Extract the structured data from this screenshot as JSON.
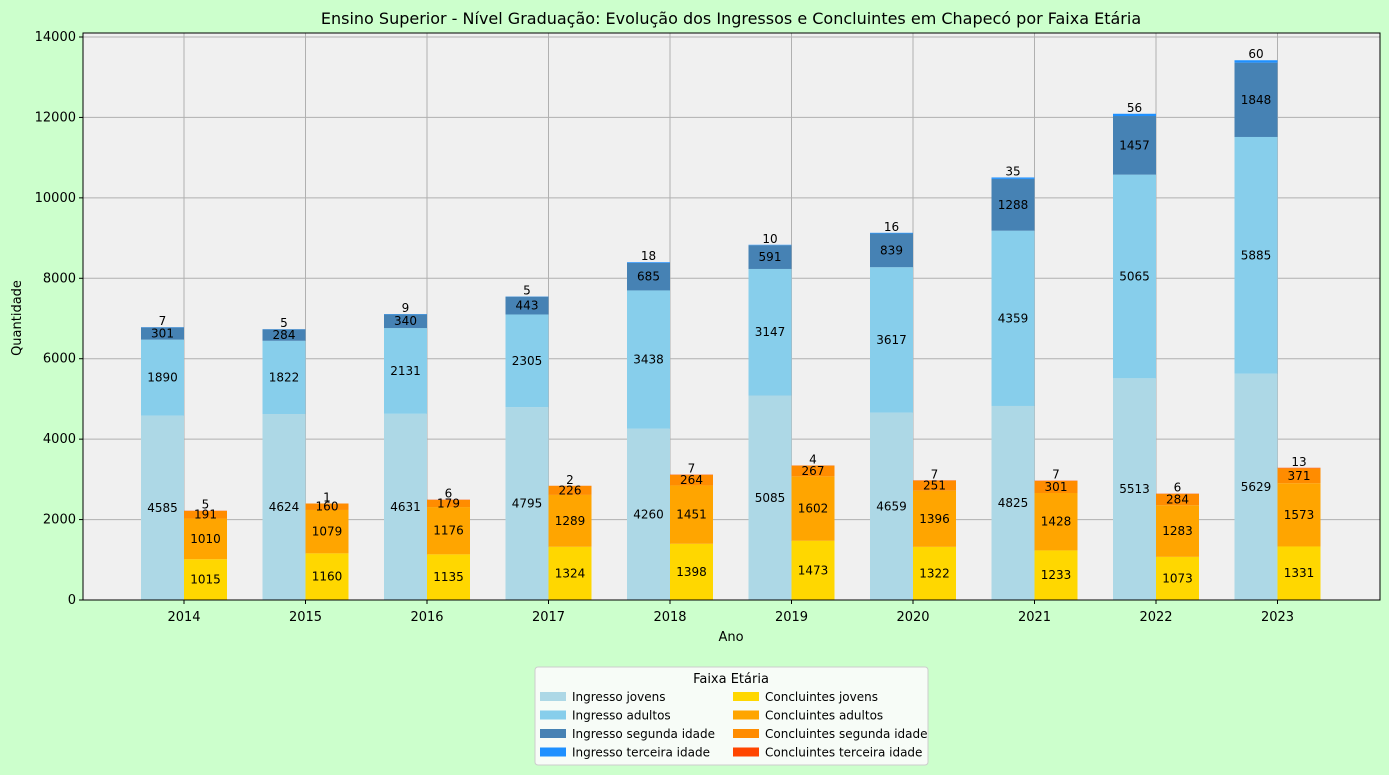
{
  "chart_data": {
    "type": "bar",
    "title": "Ensino Superior - Nível Graduação: Evolução dos Ingressos e Concluintes em Chapecó por Faixa Etária",
    "xlabel": "Ano",
    "ylabel": "Quantidade",
    "categories": [
      "2014",
      "2015",
      "2016",
      "2017",
      "2018",
      "2019",
      "2020",
      "2021",
      "2022",
      "2023"
    ],
    "ylim": [
      0,
      14000
    ],
    "yticks": [
      "0",
      "2000",
      "4000",
      "6000",
      "8000",
      "10000",
      "12000",
      "14000"
    ],
    "grid": true,
    "legend_title": "Faixa Etária",
    "legend_placement": "bottom-center",
    "groups": [
      {
        "name": "Ingresso",
        "series": [
          {
            "name": "Ingresso jovens",
            "color": "#add8e6",
            "values": [
              4585,
              4624,
              4631,
              4795,
              4260,
              5085,
              4659,
              4825,
              5513,
              5629
            ]
          },
          {
            "name": "Ingresso adultos",
            "color": "#87ceeb",
            "values": [
              1890,
              1822,
              2131,
              2305,
              3438,
              3147,
              3617,
              4359,
              5065,
              5885
            ]
          },
          {
            "name": "Ingresso segunda idade",
            "color": "#4682b4",
            "values": [
              301,
              284,
              340,
              443,
              685,
              591,
              839,
              1288,
              1457,
              1848
            ]
          },
          {
            "name": "Ingresso terceira idade",
            "color": "#1e90ff",
            "values": [
              7,
              5,
              9,
              5,
              18,
              10,
              16,
              35,
              56,
              60
            ]
          }
        ]
      },
      {
        "name": "Concluintes",
        "series": [
          {
            "name": "Concluintes jovens",
            "color": "#ffd700",
            "values": [
              1015,
              1160,
              1135,
              1324,
              1398,
              1473,
              1322,
              1233,
              1073,
              1331
            ]
          },
          {
            "name": "Concluintes adultos",
            "color": "#ffa500",
            "values": [
              1010,
              1079,
              1176,
              1289,
              1451,
              1602,
              1396,
              1428,
              1283,
              1573
            ]
          },
          {
            "name": "Concluintes segunda idade",
            "color": "#ff8c00",
            "values": [
              191,
              160,
              179,
              226,
              264,
              267,
              251,
              301,
              284,
              371
            ]
          },
          {
            "name": "Concluintes terceira idade",
            "color": "#ff4500",
            "values": [
              5,
              1,
              6,
              2,
              7,
              4,
              7,
              7,
              6,
              13
            ]
          }
        ]
      }
    ]
  }
}
